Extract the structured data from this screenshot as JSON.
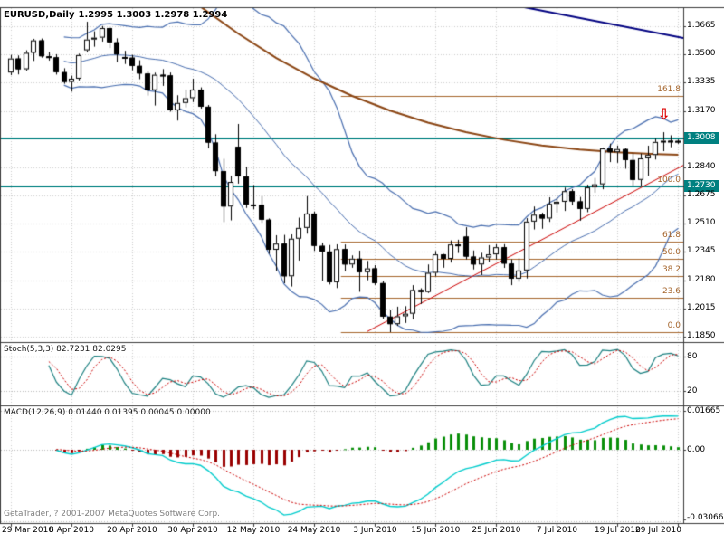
{
  "window": {
    "title_symbol": "EURUSD,Daily",
    "title_ohlc": "1.2995 1.3003 1.2978 1.2994",
    "copyright": "GetaTrader, ? 2001-2007 MetaQuotes Software Corp."
  },
  "colors": {
    "background": "#ffffff",
    "border": "#3a3a3a",
    "grid": "#cccccc",
    "bull": "#ffffff",
    "bear": "#000000",
    "candle_outline": "#000000",
    "bands": "#4a6fb0",
    "ma": "#8b4513",
    "trend_down": "#000080",
    "trend_up": "#cc0000",
    "hline": "#008080",
    "fib": "#a5652c",
    "stoch_k": "#1b8080",
    "stoch_d": "#cc0000",
    "macd_line": "#00cccc",
    "macd_signal": "#cc0000",
    "hist_pos": "#0a8f0a",
    "hist_neg": "#990000",
    "arrow": "#dd0000"
  },
  "chart_data": {
    "type": "candlestick",
    "symbol": "EURUSD",
    "timeframe": "Daily",
    "title": "EURUSD,Daily 1.2995 1.3003 1.2978 1.2994",
    "current_bar": {
      "open": "1.2995",
      "high": "1.3003",
      "low": "1.2978",
      "close": "1.2994"
    },
    "price_axis": {
      "min": 1.1818,
      "max": 1.3777,
      "labels": [
        {
          "text": "1.3665",
          "value": 1.3665
        },
        {
          "text": "1.3500",
          "value": 1.35
        },
        {
          "text": "1.3335",
          "value": 1.3335
        },
        {
          "text": "1.3170",
          "value": 1.317
        },
        {
          "text": "1.3008",
          "value": 1.3008,
          "highlight": true
        },
        {
          "text": "1.2840",
          "value": 1.284
        },
        {
          "text": "1.2730",
          "value": 1.273,
          "highlight": true
        },
        {
          "text": "1.2675",
          "value": 1.2675
        },
        {
          "text": "1.2510",
          "value": 1.251
        },
        {
          "text": "1.2345",
          "value": 1.2345
        },
        {
          "text": "1.2180",
          "value": 1.218
        },
        {
          "text": "1.2015",
          "value": 1.2015
        },
        {
          "text": "1.1850",
          "value": 1.185
        }
      ]
    },
    "x_labels": [
      {
        "text": "29 Mar 2010",
        "i": 0
      },
      {
        "text": "8 Apr 2010",
        "i": 8
      },
      {
        "text": "20 Apr 2010",
        "i": 16
      },
      {
        "text": "30 Apr 2010",
        "i": 24
      },
      {
        "text": "12 May 2010",
        "i": 32
      },
      {
        "text": "24 May 2010",
        "i": 40
      },
      {
        "text": "3 Jun 2010",
        "i": 48
      },
      {
        "text": "15 Jun 2010",
        "i": 56
      },
      {
        "text": "25 Jun 2010",
        "i": 64
      },
      {
        "text": "7 Jul 2010",
        "i": 72
      },
      {
        "text": "19 Jul 2010",
        "i": 80
      },
      {
        "text": "29 Jul 2010",
        "i": 88
      }
    ],
    "ohlc_fields": [
      "open",
      "high",
      "low",
      "close"
    ],
    "candles": [
      [
        1.3395,
        1.3498,
        1.338,
        1.3477
      ],
      [
        1.3477,
        1.3495,
        1.3384,
        1.3414
      ],
      [
        1.3414,
        1.3525,
        1.3406,
        1.351
      ],
      [
        1.351,
        1.3592,
        1.3463,
        1.3583
      ],
      [
        1.3583,
        1.3594,
        1.3482,
        1.349
      ],
      [
        1.349,
        1.3515,
        1.3465,
        1.3484
      ],
      [
        1.3484,
        1.3502,
        1.3383,
        1.3397
      ],
      [
        1.3397,
        1.342,
        1.3329,
        1.334
      ],
      [
        1.334,
        1.3377,
        1.3283,
        1.3359
      ],
      [
        1.3359,
        1.3505,
        1.3349,
        1.3497
      ],
      [
        1.3525,
        1.3692,
        1.3513,
        1.3588
      ],
      [
        1.3588,
        1.3636,
        1.3546,
        1.3599
      ],
      [
        1.3599,
        1.3667,
        1.3576,
        1.3655
      ],
      [
        1.3655,
        1.3664,
        1.3538,
        1.3572
      ],
      [
        1.3572,
        1.3595,
        1.3456,
        1.3501
      ],
      [
        1.3486,
        1.3522,
        1.3445,
        1.3482
      ],
      [
        1.3482,
        1.3498,
        1.3408,
        1.3434
      ],
      [
        1.3434,
        1.3467,
        1.3356,
        1.3389
      ],
      [
        1.3389,
        1.3402,
        1.326,
        1.3291
      ],
      [
        1.3291,
        1.3394,
        1.3202,
        1.3382
      ],
      [
        1.3382,
        1.3415,
        1.3317,
        1.3378
      ],
      [
        1.3378,
        1.3395,
        1.3166,
        1.3174
      ],
      [
        1.3174,
        1.3262,
        1.3114,
        1.3217
      ],
      [
        1.3217,
        1.3295,
        1.3191,
        1.3245
      ],
      [
        1.3245,
        1.3359,
        1.3222,
        1.3295
      ],
      [
        1.3295,
        1.3308,
        1.3184,
        1.3195
      ],
      [
        1.3195,
        1.3205,
        1.2951,
        1.2985
      ],
      [
        1.2985,
        1.3034,
        1.2787,
        1.2818
      ],
      [
        1.2818,
        1.289,
        1.252,
        1.2611
      ],
      [
        1.2611,
        1.2791,
        1.253,
        1.2755
      ],
      [
        1.2961,
        1.3094,
        1.2745,
        1.2787
      ],
      [
        1.2787,
        1.2843,
        1.2603,
        1.2623
      ],
      [
        1.2623,
        1.2737,
        1.2595,
        1.2621
      ],
      [
        1.2621,
        1.2673,
        1.2516,
        1.2534
      ],
      [
        1.2534,
        1.2541,
        1.2334,
        1.2358
      ],
      [
        1.2358,
        1.2443,
        1.2234,
        1.2394
      ],
      [
        1.2394,
        1.2445,
        1.2162,
        1.2203
      ],
      [
        1.2203,
        1.2448,
        1.2143,
        1.2423
      ],
      [
        1.2423,
        1.2546,
        1.2295,
        1.2486
      ],
      [
        1.2486,
        1.2672,
        1.2452,
        1.257
      ],
      [
        1.257,
        1.2582,
        1.2351,
        1.2381
      ],
      [
        1.2381,
        1.24,
        1.2177,
        1.2348
      ],
      [
        1.2348,
        1.2386,
        1.2155,
        1.2168
      ],
      [
        1.2168,
        1.239,
        1.2134,
        1.2362
      ],
      [
        1.2362,
        1.2389,
        1.2233,
        1.2272
      ],
      [
        1.2272,
        1.2325,
        1.2253,
        1.2306
      ],
      [
        1.2306,
        1.2353,
        1.2112,
        1.2227
      ],
      [
        1.2227,
        1.2293,
        1.218,
        1.2249
      ],
      [
        1.2249,
        1.2268,
        1.2152,
        1.2163
      ],
      [
        1.2163,
        1.2176,
        1.1955,
        1.1967
      ],
      [
        1.1967,
        1.2005,
        1.1876,
        1.1923
      ],
      [
        1.1923,
        1.2025,
        1.1913,
        1.1969
      ],
      [
        1.1969,
        1.2028,
        1.193,
        1.1984
      ],
      [
        1.1984,
        1.2151,
        1.1951,
        1.2123
      ],
      [
        1.2123,
        1.2133,
        1.2041,
        1.2111
      ],
      [
        1.2111,
        1.2272,
        1.2105,
        1.2223
      ],
      [
        1.2223,
        1.2351,
        1.2203,
        1.2331
      ],
      [
        1.2331,
        1.2334,
        1.2253,
        1.2305
      ],
      [
        1.2305,
        1.2413,
        1.2283,
        1.2389
      ],
      [
        1.2389,
        1.2417,
        1.2339,
        1.2387
      ],
      [
        1.2435,
        1.249,
        1.2302,
        1.2318
      ],
      [
        1.2318,
        1.2354,
        1.2243,
        1.2272
      ],
      [
        1.2272,
        1.234,
        1.221,
        1.2313
      ],
      [
        1.2313,
        1.2385,
        1.2287,
        1.2331
      ],
      [
        1.2331,
        1.2391,
        1.2301,
        1.2373
      ],
      [
        1.2373,
        1.2391,
        1.2252,
        1.2277
      ],
      [
        1.2277,
        1.2302,
        1.2151,
        1.2189
      ],
      [
        1.2189,
        1.2308,
        1.2171,
        1.2237
      ],
      [
        1.2237,
        1.2543,
        1.219,
        1.2523
      ],
      [
        1.2523,
        1.2611,
        1.2477,
        1.2563
      ],
      [
        1.2563,
        1.2575,
        1.2481,
        1.2541
      ],
      [
        1.2541,
        1.2665,
        1.2521,
        1.2627
      ],
      [
        1.2627,
        1.2662,
        1.2576,
        1.2639
      ],
      [
        1.2639,
        1.2722,
        1.2585,
        1.2701
      ],
      [
        1.2701,
        1.2713,
        1.2618,
        1.2641
      ],
      [
        1.2641,
        1.2667,
        1.2528,
        1.2597
      ],
      [
        1.2597,
        1.2739,
        1.2578,
        1.2723
      ],
      [
        1.2723,
        1.2778,
        1.2692,
        1.2741
      ],
      [
        1.2741,
        1.2955,
        1.2712,
        1.2951
      ],
      [
        1.2951,
        1.2979,
        1.2871,
        1.2929
      ],
      [
        1.2929,
        1.2968,
        1.2867,
        1.2947
      ],
      [
        1.2947,
        1.2951,
        1.2832,
        1.2883
      ],
      [
        1.2883,
        1.2922,
        1.2733,
        1.2767
      ],
      [
        1.2767,
        1.2921,
        1.2731,
        1.2893
      ],
      [
        1.2893,
        1.2967,
        1.2791,
        1.2913
      ],
      [
        1.2913,
        1.3007,
        1.2886,
        1.2989
      ],
      [
        1.2989,
        1.3046,
        1.2935,
        1.2996
      ],
      [
        1.2996,
        1.3028,
        1.2958,
        1.2989
      ],
      [
        1.2995,
        1.3003,
        1.2978,
        1.2994
      ]
    ],
    "overlays": {
      "bollinger": {
        "period": 20,
        "deviation": 2
      },
      "ma": {
        "name": "long-term-ma",
        "width": 2,
        "points": [
          [
            25,
            1.378
          ],
          [
            30,
            1.3622
          ],
          [
            35,
            1.348
          ],
          [
            40,
            1.336
          ],
          [
            45,
            1.3258
          ],
          [
            50,
            1.3172
          ],
          [
            55,
            1.3102
          ],
          [
            60,
            1.3046
          ],
          [
            65,
            1.3002
          ],
          [
            70,
            1.2968
          ],
          [
            75,
            1.2944
          ],
          [
            80,
            1.2928
          ],
          [
            85,
            1.2918
          ],
          [
            88,
            1.2914
          ]
        ]
      },
      "trendlines": [
        {
          "name": "descending-trendline",
          "color_key": "trend_down",
          "width": 2,
          "from": [
            65,
            1.38
          ],
          "to": [
            93,
            1.356
          ]
        },
        {
          "name": "ascending-trendline",
          "color_key": "trend_up",
          "width": 1,
          "from": [
            47,
            1.188
          ],
          "to": [
            92,
            1.293
          ]
        }
      ],
      "hlines": [
        {
          "price": 1.3008,
          "label": "1.3008",
          "width": 2
        },
        {
          "price": 1.273,
          "label": "1.2730",
          "width": 2
        }
      ],
      "fibonacci": {
        "start_index": 44,
        "base_low": 1.1876,
        "base_high": 1.273,
        "levels": [
          {
            "label": "0.0",
            "ratio": 0.0
          },
          {
            "label": "23.6",
            "ratio": 0.236
          },
          {
            "label": "38.2",
            "ratio": 0.382
          },
          {
            "label": "50.0",
            "ratio": 0.5
          },
          {
            "label": "61.8",
            "ratio": 0.618
          },
          {
            "label": "100.0",
            "ratio": 1.0
          },
          {
            "label": "161.8",
            "ratio": 1.618
          }
        ]
      }
    },
    "objects": {
      "sell_arrow": {
        "glyph": "⇩",
        "index": 86,
        "price": 1.3175
      }
    },
    "indicators": {
      "stoch": {
        "label": "Stoch(5,3,3) 82.7231 82.0295",
        "k_period": 5,
        "d_period": 3,
        "slowing": 3,
        "range": [
          0,
          100
        ],
        "levels": [
          80,
          20
        ],
        "axis_labels": [
          {
            "text": "80",
            "value": 80
          },
          {
            "text": "20",
            "value": 20
          }
        ]
      },
      "macd": {
        "label": "MACD(12,26,9) 0.01440 0.01395 0.00045 0.00000",
        "fast": 12,
        "slow": 26,
        "signal": 9,
        "axis_labels": [
          {
            "text": "0.01665",
            "value": 0.01665
          },
          {
            "text": "0.00",
            "value": 0.0
          },
          {
            "text": "-0.03066",
            "value": -0.03066
          }
        ]
      }
    }
  }
}
